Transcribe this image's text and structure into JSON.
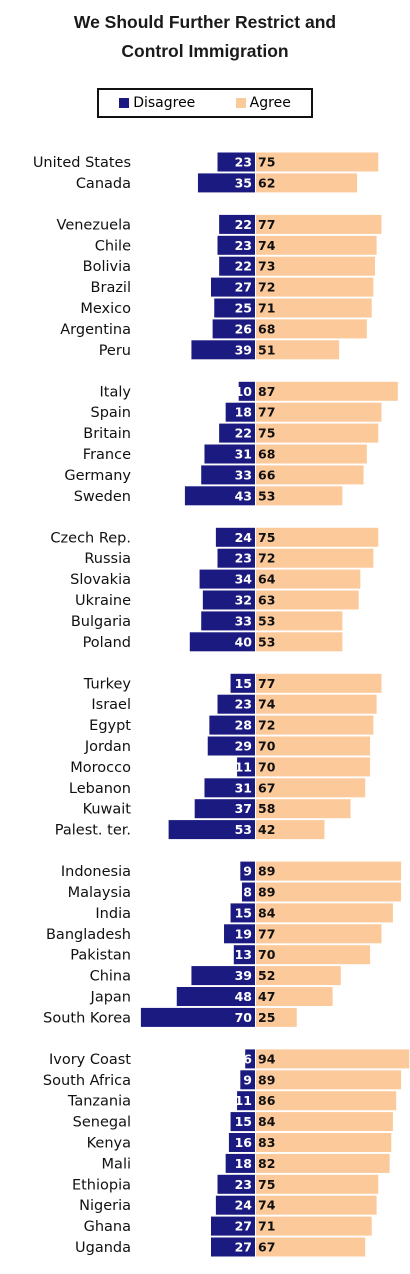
{
  "chart_data": {
    "type": "bar",
    "title": "We Should Further Restrict and Control Immigration",
    "title_lines": [
      "We Should Further Restrict and",
      "Control Immigration"
    ],
    "legend_placement": "top",
    "series": [
      {
        "name": "Disagree",
        "color": "#1a1a80"
      },
      {
        "name": "Agree",
        "color": "#fcc99b"
      }
    ],
    "groups": [
      {
        "rows": [
          {
            "country": "United States",
            "disagree": 23,
            "agree": 75
          },
          {
            "country": "Canada",
            "disagree": 35,
            "agree": 62
          }
        ]
      },
      {
        "rows": [
          {
            "country": "Venezuela",
            "disagree": 22,
            "agree": 77
          },
          {
            "country": "Chile",
            "disagree": 23,
            "agree": 74
          },
          {
            "country": "Bolivia",
            "disagree": 22,
            "agree": 73
          },
          {
            "country": "Brazil",
            "disagree": 27,
            "agree": 72
          },
          {
            "country": "Mexico",
            "disagree": 25,
            "agree": 71
          },
          {
            "country": "Argentina",
            "disagree": 26,
            "agree": 68
          },
          {
            "country": "Peru",
            "disagree": 39,
            "agree": 51
          }
        ]
      },
      {
        "rows": [
          {
            "country": "Italy",
            "disagree": 10,
            "agree": 87
          },
          {
            "country": "Spain",
            "disagree": 18,
            "agree": 77
          },
          {
            "country": "Britain",
            "disagree": 22,
            "agree": 75
          },
          {
            "country": "France",
            "disagree": 31,
            "agree": 68
          },
          {
            "country": "Germany",
            "disagree": 33,
            "agree": 66
          },
          {
            "country": "Sweden",
            "disagree": 43,
            "agree": 53
          }
        ]
      },
      {
        "rows": [
          {
            "country": "Czech Rep.",
            "disagree": 24,
            "agree": 75
          },
          {
            "country": "Russia",
            "disagree": 23,
            "agree": 72
          },
          {
            "country": "Slovakia",
            "disagree": 34,
            "agree": 64
          },
          {
            "country": "Ukraine",
            "disagree": 32,
            "agree": 63
          },
          {
            "country": "Bulgaria",
            "disagree": 33,
            "agree": 53
          },
          {
            "country": "Poland",
            "disagree": 40,
            "agree": 53
          }
        ]
      },
      {
        "rows": [
          {
            "country": "Turkey",
            "disagree": 15,
            "agree": 77
          },
          {
            "country": "Israel",
            "disagree": 23,
            "agree": 74
          },
          {
            "country": "Egypt",
            "disagree": 28,
            "agree": 72
          },
          {
            "country": "Jordan",
            "disagree": 29,
            "agree": 70
          },
          {
            "country": "Morocco",
            "disagree": 11,
            "agree": 70
          },
          {
            "country": "Lebanon",
            "disagree": 31,
            "agree": 67
          },
          {
            "country": "Kuwait",
            "disagree": 37,
            "agree": 58
          },
          {
            "country": "Palest. ter.",
            "disagree": 53,
            "agree": 42
          }
        ]
      },
      {
        "rows": [
          {
            "country": "Indonesia",
            "disagree": 9,
            "agree": 89
          },
          {
            "country": "Malaysia",
            "disagree": 8,
            "agree": 89
          },
          {
            "country": "India",
            "disagree": 15,
            "agree": 84
          },
          {
            "country": "Bangladesh",
            "disagree": 19,
            "agree": 77
          },
          {
            "country": "Pakistan",
            "disagree": 13,
            "agree": 70
          },
          {
            "country": "China",
            "disagree": 39,
            "agree": 52
          },
          {
            "country": "Japan",
            "disagree": 48,
            "agree": 47
          },
          {
            "country": "South Korea",
            "disagree": 70,
            "agree": 25
          }
        ]
      },
      {
        "rows": [
          {
            "country": "Ivory Coast",
            "disagree": 6,
            "agree": 94
          },
          {
            "country": "South Africa",
            "disagree": 9,
            "agree": 89
          },
          {
            "country": "Tanzania",
            "disagree": 11,
            "agree": 86
          },
          {
            "country": "Senegal",
            "disagree": 15,
            "agree": 84
          },
          {
            "country": "Kenya",
            "disagree": 16,
            "agree": 83
          },
          {
            "country": "Mali",
            "disagree": 18,
            "agree": 82
          },
          {
            "country": "Ethiopia",
            "disagree": 23,
            "agree": 75
          },
          {
            "country": "Nigeria",
            "disagree": 24,
            "agree": 74
          },
          {
            "country": "Ghana",
            "disagree": 27,
            "agree": 71
          },
          {
            "country": "Uganda",
            "disagree": 27,
            "agree": 67
          }
        ]
      }
    ]
  }
}
